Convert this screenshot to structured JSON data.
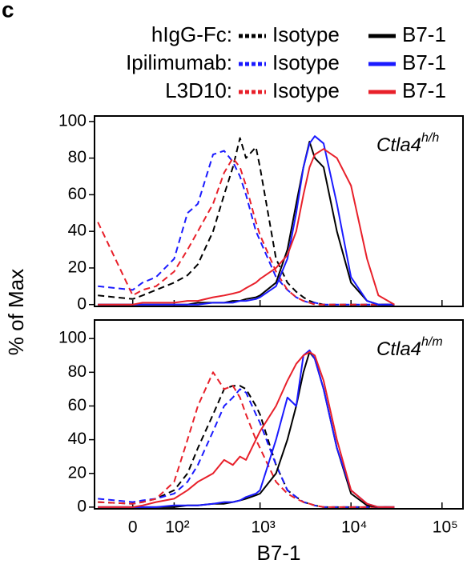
{
  "panel_label": "c",
  "legend": {
    "rows": [
      {
        "label": "hIgG-Fc:",
        "color": "#000000"
      },
      {
        "label": "Ipilimumab:",
        "color": "#1a1aff"
      },
      {
        "label": "L3D10:",
        "color": "#e8202a"
      }
    ],
    "columns": [
      {
        "label": "Isotype",
        "dashed": true
      },
      {
        "label": "B7-1",
        "dashed": false
      }
    ]
  },
  "y_label": "% of Max",
  "x_label": "B7-1",
  "chart_data": [
    {
      "type": "line",
      "title": "Ctla4",
      "title_superscript": "h/h",
      "x": [
        -80,
        0,
        20,
        50,
        100,
        150,
        200,
        300,
        400,
        500,
        600,
        700,
        900,
        1000,
        1500,
        2000,
        2500,
        3000,
        3500,
        4000,
        5000,
        7000,
        10000,
        15000,
        20000,
        30000
      ],
      "xlim": [
        -90,
        170000
      ],
      "xticks": [
        0,
        {
          "value": 100,
          "label": "10²"
        },
        {
          "value": 1000,
          "label": "10³"
        },
        {
          "value": 10000,
          "label": "10⁴"
        },
        {
          "value": 100000,
          "label": "10⁵"
        }
      ],
      "ylim": [
        -1,
        103
      ],
      "yticks": [
        0,
        20,
        40,
        60,
        80,
        100
      ],
      "show_xtick_labels": false,
      "series": [
        {
          "color": "#000000",
          "dashed": true,
          "values": [
            5,
            3,
            5,
            8,
            12,
            16,
            22,
            40,
            60,
            75,
            91,
            80,
            86,
            75,
            25,
            12,
            7,
            4,
            2,
            1,
            0,
            0,
            0,
            0,
            0,
            0
          ]
        },
        {
          "color": "#1a1aff",
          "dashed": true,
          "values": [
            10,
            8,
            12,
            15,
            25,
            50,
            55,
            82,
            84,
            78,
            70,
            60,
            40,
            35,
            15,
            8,
            4,
            2,
            1,
            1,
            0,
            0,
            0,
            0,
            0,
            0
          ]
        },
        {
          "color": "#e8202a",
          "dashed": true,
          "values": [
            45,
            5,
            8,
            10,
            18,
            30,
            40,
            55,
            72,
            80,
            75,
            65,
            45,
            38,
            18,
            8,
            4,
            2,
            1,
            0,
            0,
            0,
            0,
            0,
            0,
            0
          ]
        },
        {
          "color": "#000000",
          "dashed": false,
          "values": [
            0,
            0,
            0,
            0,
            0,
            0,
            1,
            1,
            1,
            2,
            2,
            3,
            4,
            5,
            12,
            30,
            55,
            75,
            89,
            80,
            75,
            40,
            12,
            2,
            0,
            0
          ]
        },
        {
          "color": "#1a1aff",
          "dashed": false,
          "values": [
            0,
            0,
            0,
            0,
            0,
            0,
            0,
            1,
            1,
            1,
            2,
            2,
            3,
            4,
            10,
            25,
            50,
            75,
            88,
            92,
            88,
            55,
            15,
            2,
            0,
            0
          ]
        },
        {
          "color": "#e8202a",
          "dashed": false,
          "values": [
            0,
            0,
            1,
            1,
            1,
            2,
            2,
            4,
            5,
            6,
            7,
            9,
            12,
            14,
            20,
            27,
            40,
            60,
            75,
            82,
            85,
            80,
            65,
            25,
            5,
            0
          ]
        }
      ]
    },
    {
      "type": "line",
      "title": "Ctla4",
      "title_superscript": "h/m",
      "x": [
        -80,
        0,
        20,
        50,
        100,
        150,
        200,
        300,
        400,
        500,
        600,
        700,
        900,
        1000,
        1500,
        2000,
        2500,
        3000,
        3500,
        4000,
        5000,
        7000,
        10000,
        15000,
        20000,
        30000
      ],
      "xlim": [
        -90,
        170000
      ],
      "xticks": [
        0,
        {
          "value": 100,
          "label": "10²"
        },
        {
          "value": 1000,
          "label": "10³"
        },
        {
          "value": 10000,
          "label": "10⁴"
        },
        {
          "value": 100000,
          "label": "10⁵"
        }
      ],
      "ylim": [
        -1,
        111
      ],
      "yticks": [
        0,
        20,
        40,
        60,
        80,
        100
      ],
      "show_xtick_labels": true,
      "series": [
        {
          "color": "#000000",
          "dashed": true,
          "values": [
            3,
            2,
            3,
            5,
            10,
            20,
            35,
            55,
            70,
            72,
            72,
            70,
            60,
            55,
            25,
            10,
            6,
            3,
            2,
            1,
            0,
            0,
            0,
            0,
            0,
            0
          ]
        },
        {
          "color": "#1a1aff",
          "dashed": true,
          "values": [
            5,
            3,
            4,
            5,
            8,
            15,
            25,
            45,
            60,
            65,
            70,
            68,
            55,
            50,
            25,
            10,
            6,
            3,
            2,
            1,
            0,
            0,
            0,
            0,
            0,
            0
          ]
        },
        {
          "color": "#e8202a",
          "dashed": true,
          "values": [
            3,
            2,
            3,
            5,
            15,
            40,
            60,
            80,
            70,
            72,
            65,
            55,
            40,
            35,
            15,
            8,
            5,
            3,
            2,
            1,
            0,
            0,
            0,
            0,
            0,
            0
          ]
        },
        {
          "color": "#000000",
          "dashed": false,
          "values": [
            0,
            0,
            0,
            0,
            0,
            1,
            1,
            2,
            2,
            3,
            4,
            5,
            7,
            8,
            20,
            40,
            60,
            80,
            92,
            88,
            70,
            35,
            8,
            1,
            0,
            0
          ]
        },
        {
          "color": "#1a1aff",
          "dashed": false,
          "values": [
            0,
            0,
            0,
            0,
            1,
            1,
            1,
            2,
            3,
            3,
            4,
            6,
            8,
            10,
            40,
            65,
            60,
            90,
            93,
            88,
            70,
            35,
            10,
            2,
            0,
            0
          ]
        },
        {
          "color": "#e8202a",
          "dashed": false,
          "values": [
            0,
            0,
            1,
            3,
            5,
            10,
            15,
            20,
            28,
            25,
            30,
            28,
            40,
            45,
            60,
            75,
            85,
            90,
            92,
            90,
            75,
            40,
            10,
            2,
            0,
            0
          ]
        }
      ]
    }
  ]
}
